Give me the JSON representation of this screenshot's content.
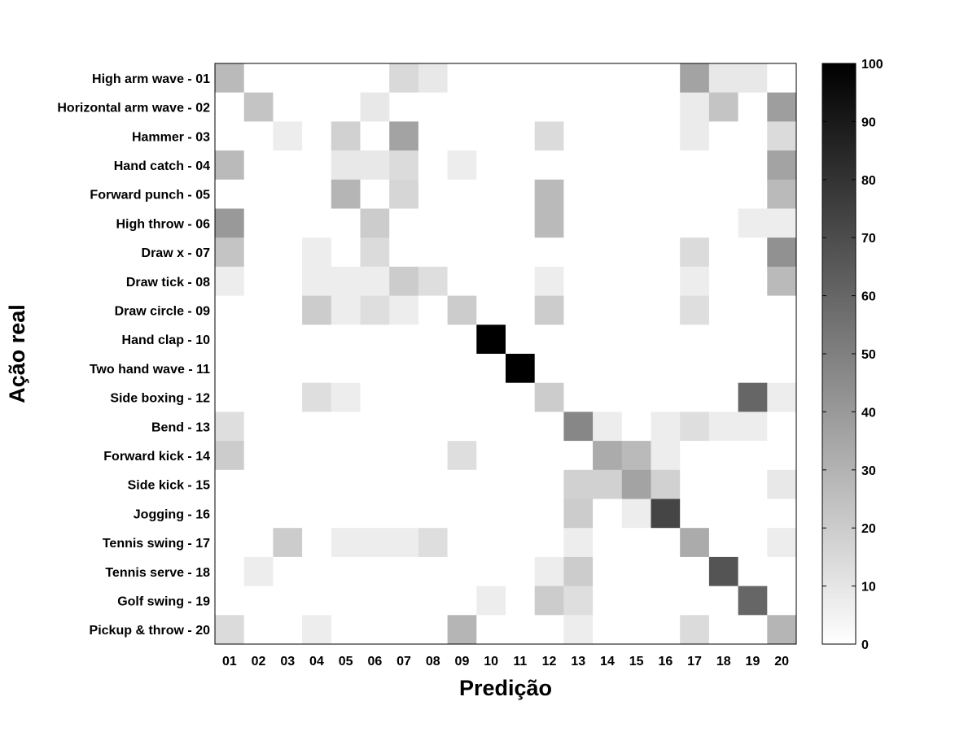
{
  "chart_data": {
    "type": "heatmap",
    "title": "",
    "xlabel": "Predição",
    "ylabel": "Ação real",
    "x_categories": [
      "01",
      "02",
      "03",
      "04",
      "05",
      "06",
      "07",
      "08",
      "09",
      "10",
      "11",
      "12",
      "13",
      "14",
      "15",
      "16",
      "17",
      "18",
      "19",
      "20"
    ],
    "y_categories": [
      "High arm wave - 01",
      "Horizontal arm wave - 02",
      "Hammer - 03",
      "Hand catch - 04",
      "Forward punch - 05",
      "High throw - 06",
      "Draw x - 07",
      "Draw tick - 08",
      "Draw circle - 09",
      "Hand clap - 10",
      "Two hand wave - 11",
      "Side boxing - 12",
      "Bend - 13",
      "Forward kick - 14",
      "Side kick - 15",
      "Jogging - 16",
      "Tennis swing - 17",
      "Tennis serve - 18",
      "Golf swing - 19",
      "Pickup & throw - 20"
    ],
    "values": [
      [
        27,
        0,
        0,
        0,
        0,
        0,
        15,
        9,
        0,
        0,
        0,
        0,
        0,
        0,
        0,
        0,
        36,
        9,
        9,
        0
      ],
      [
        0,
        23,
        0,
        0,
        0,
        9,
        0,
        0,
        0,
        0,
        0,
        0,
        0,
        0,
        0,
        0,
        8,
        23,
        0,
        38
      ],
      [
        0,
        0,
        7,
        0,
        18,
        0,
        36,
        0,
        0,
        0,
        0,
        14,
        0,
        0,
        0,
        0,
        8,
        0,
        0,
        14
      ],
      [
        27,
        0,
        0,
        0,
        9,
        9,
        14,
        0,
        7,
        0,
        0,
        0,
        0,
        0,
        0,
        0,
        0,
        0,
        0,
        36
      ],
      [
        0,
        0,
        0,
        0,
        29,
        0,
        16,
        0,
        0,
        0,
        0,
        27,
        0,
        0,
        0,
        0,
        0,
        0,
        0,
        27
      ],
      [
        40,
        0,
        0,
        0,
        0,
        20,
        0,
        0,
        0,
        0,
        0,
        27,
        0,
        0,
        0,
        0,
        0,
        0,
        7,
        7
      ],
      [
        23,
        0,
        0,
        7,
        0,
        14,
        0,
        0,
        0,
        0,
        0,
        0,
        0,
        0,
        0,
        0,
        14,
        0,
        0,
        43
      ],
      [
        7,
        0,
        0,
        7,
        7,
        7,
        20,
        13,
        0,
        0,
        0,
        7,
        0,
        0,
        0,
        0,
        7,
        0,
        0,
        27
      ],
      [
        0,
        0,
        0,
        20,
        7,
        13,
        7,
        0,
        20,
        0,
        0,
        20,
        0,
        0,
        0,
        0,
        13,
        0,
        0,
        0
      ],
      [
        0,
        0,
        0,
        0,
        0,
        0,
        0,
        0,
        0,
        100,
        0,
        0,
        0,
        0,
        0,
        0,
        0,
        0,
        0,
        0
      ],
      [
        0,
        0,
        0,
        0,
        0,
        0,
        0,
        0,
        0,
        0,
        100,
        0,
        0,
        0,
        0,
        0,
        0,
        0,
        0,
        0
      ],
      [
        0,
        0,
        0,
        13,
        7,
        0,
        0,
        0,
        0,
        0,
        0,
        20,
        0,
        0,
        0,
        0,
        0,
        0,
        60,
        7
      ],
      [
        13,
        0,
        0,
        0,
        0,
        0,
        0,
        0,
        0,
        0,
        0,
        0,
        47,
        7,
        0,
        7,
        13,
        7,
        7,
        0
      ],
      [
        20,
        0,
        0,
        0,
        0,
        0,
        0,
        0,
        13,
        0,
        0,
        0,
        0,
        33,
        27,
        7,
        0,
        0,
        0,
        0
      ],
      [
        0,
        0,
        0,
        0,
        0,
        0,
        0,
        0,
        0,
        0,
        0,
        0,
        18,
        18,
        36,
        18,
        0,
        0,
        0,
        9
      ],
      [
        0,
        0,
        0,
        0,
        0,
        0,
        0,
        0,
        0,
        0,
        0,
        0,
        20,
        0,
        7,
        73,
        0,
        0,
        0,
        0
      ],
      [
        0,
        0,
        20,
        0,
        7,
        7,
        7,
        13,
        0,
        0,
        0,
        0,
        7,
        0,
        0,
        0,
        33,
        0,
        0,
        7
      ],
      [
        0,
        7,
        0,
        0,
        0,
        0,
        0,
        0,
        0,
        0,
        0,
        7,
        20,
        0,
        0,
        0,
        0,
        67,
        0,
        0
      ],
      [
        0,
        0,
        0,
        0,
        0,
        0,
        0,
        0,
        0,
        7,
        0,
        20,
        13,
        0,
        0,
        0,
        0,
        0,
        60,
        0
      ],
      [
        14,
        0,
        0,
        7,
        0,
        0,
        0,
        0,
        29,
        0,
        0,
        0,
        7,
        0,
        0,
        0,
        14,
        0,
        0,
        29
      ]
    ],
    "colorbar": {
      "min": 0,
      "max": 100,
      "ticks": [
        0,
        10,
        20,
        30,
        40,
        50,
        60,
        70,
        80,
        90,
        100
      ],
      "colormap": "gray-reversed"
    },
    "colors": {
      "low": "#ffffff",
      "high": "#000000"
    },
    "grid": false
  }
}
